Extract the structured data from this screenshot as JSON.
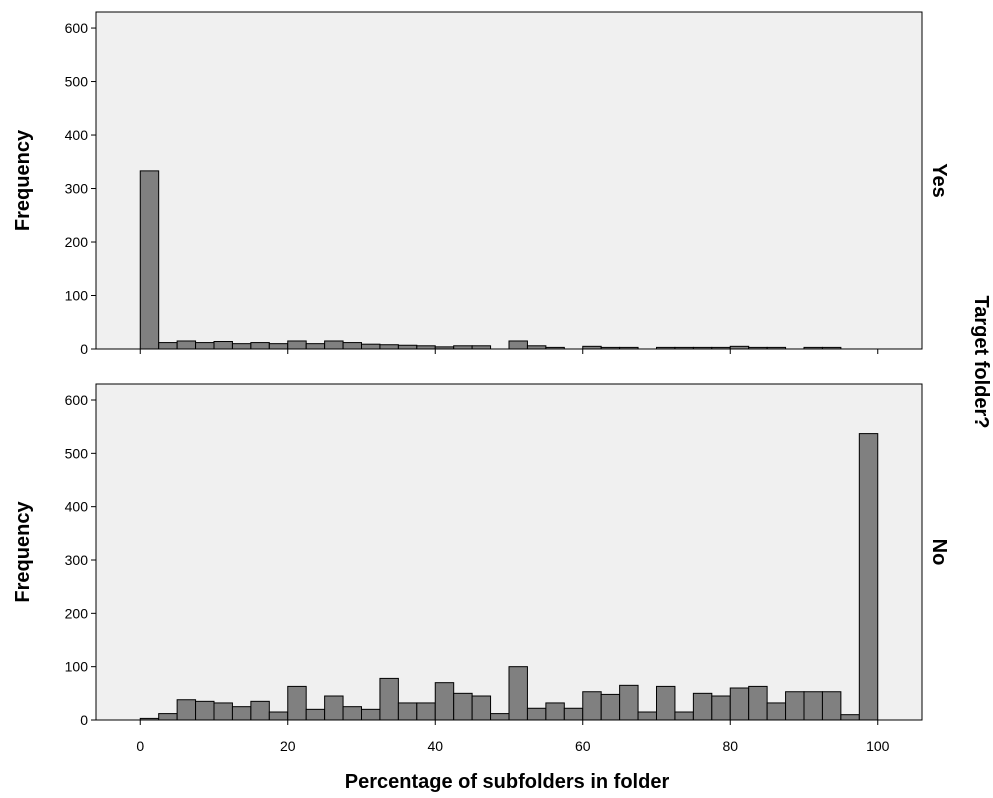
{
  "chart_data": {
    "type": "bar",
    "subtype": "faceted-histogram",
    "xlabel": "Percentage of subfolders in folder",
    "facet_title": "Target folder?",
    "xlim": [
      -6,
      106
    ],
    "xticks": [
      0,
      20,
      40,
      60,
      80,
      100
    ],
    "ylim": [
      0,
      630
    ],
    "yticks": [
      0,
      100,
      200,
      300,
      400,
      500,
      600
    ],
    "grid": false,
    "bar_color": "#808080",
    "panel_background": "#f0f0f0",
    "bin_width": 2.5,
    "panels": [
      {
        "label": "Yes",
        "ylabel": "Frequency",
        "bins": [
          {
            "x0": 0,
            "count": 333
          },
          {
            "x0": 2.5,
            "count": 12
          },
          {
            "x0": 5,
            "count": 15
          },
          {
            "x0": 7.5,
            "count": 12
          },
          {
            "x0": 10,
            "count": 14
          },
          {
            "x0": 12.5,
            "count": 10
          },
          {
            "x0": 15,
            "count": 12
          },
          {
            "x0": 17.5,
            "count": 10
          },
          {
            "x0": 20,
            "count": 15
          },
          {
            "x0": 22.5,
            "count": 10
          },
          {
            "x0": 25,
            "count": 15
          },
          {
            "x0": 27.5,
            "count": 12
          },
          {
            "x0": 30,
            "count": 9
          },
          {
            "x0": 32.5,
            "count": 8
          },
          {
            "x0": 35,
            "count": 7
          },
          {
            "x0": 37.5,
            "count": 6
          },
          {
            "x0": 40,
            "count": 4
          },
          {
            "x0": 42.5,
            "count": 6
          },
          {
            "x0": 45,
            "count": 6
          },
          {
            "x0": 50,
            "count": 15
          },
          {
            "x0": 52.5,
            "count": 6
          },
          {
            "x0": 55,
            "count": 3
          },
          {
            "x0": 60,
            "count": 5
          },
          {
            "x0": 62.5,
            "count": 3
          },
          {
            "x0": 65,
            "count": 3
          },
          {
            "x0": 70,
            "count": 3
          },
          {
            "x0": 72.5,
            "count": 3
          },
          {
            "x0": 75,
            "count": 3
          },
          {
            "x0": 77.5,
            "count": 3
          },
          {
            "x0": 80,
            "count": 5
          },
          {
            "x0": 82.5,
            "count": 3
          },
          {
            "x0": 85,
            "count": 3
          },
          {
            "x0": 90,
            "count": 3
          },
          {
            "x0": 92.5,
            "count": 3
          }
        ]
      },
      {
        "label": "No",
        "ylabel": "Frequency",
        "bins": [
          {
            "x0": 0,
            "count": 3
          },
          {
            "x0": 2.5,
            "count": 12
          },
          {
            "x0": 5,
            "count": 38
          },
          {
            "x0": 7.5,
            "count": 35
          },
          {
            "x0": 10,
            "count": 32
          },
          {
            "x0": 12.5,
            "count": 25
          },
          {
            "x0": 15,
            "count": 35
          },
          {
            "x0": 17.5,
            "count": 15
          },
          {
            "x0": 20,
            "count": 63
          },
          {
            "x0": 22.5,
            "count": 20
          },
          {
            "x0": 25,
            "count": 45
          },
          {
            "x0": 27.5,
            "count": 25
          },
          {
            "x0": 30,
            "count": 20
          },
          {
            "x0": 32.5,
            "count": 78
          },
          {
            "x0": 35,
            "count": 32
          },
          {
            "x0": 37.5,
            "count": 32
          },
          {
            "x0": 40,
            "count": 70
          },
          {
            "x0": 42.5,
            "count": 50
          },
          {
            "x0": 45,
            "count": 45
          },
          {
            "x0": 47.5,
            "count": 12
          },
          {
            "x0": 50,
            "count": 100
          },
          {
            "x0": 52.5,
            "count": 22
          },
          {
            "x0": 55,
            "count": 32
          },
          {
            "x0": 57.5,
            "count": 22
          },
          {
            "x0": 60,
            "count": 53
          },
          {
            "x0": 62.5,
            "count": 48
          },
          {
            "x0": 65,
            "count": 65
          },
          {
            "x0": 67.5,
            "count": 15
          },
          {
            "x0": 70,
            "count": 63
          },
          {
            "x0": 72.5,
            "count": 15
          },
          {
            "x0": 75,
            "count": 50
          },
          {
            "x0": 77.5,
            "count": 45
          },
          {
            "x0": 80,
            "count": 60
          },
          {
            "x0": 82.5,
            "count": 63
          },
          {
            "x0": 85,
            "count": 32
          },
          {
            "x0": 87.5,
            "count": 53
          },
          {
            "x0": 90,
            "count": 53
          },
          {
            "x0": 92.5,
            "count": 53
          },
          {
            "x0": 95,
            "count": 10
          },
          {
            "x0": 97.5,
            "count": 537
          }
        ]
      }
    ]
  }
}
